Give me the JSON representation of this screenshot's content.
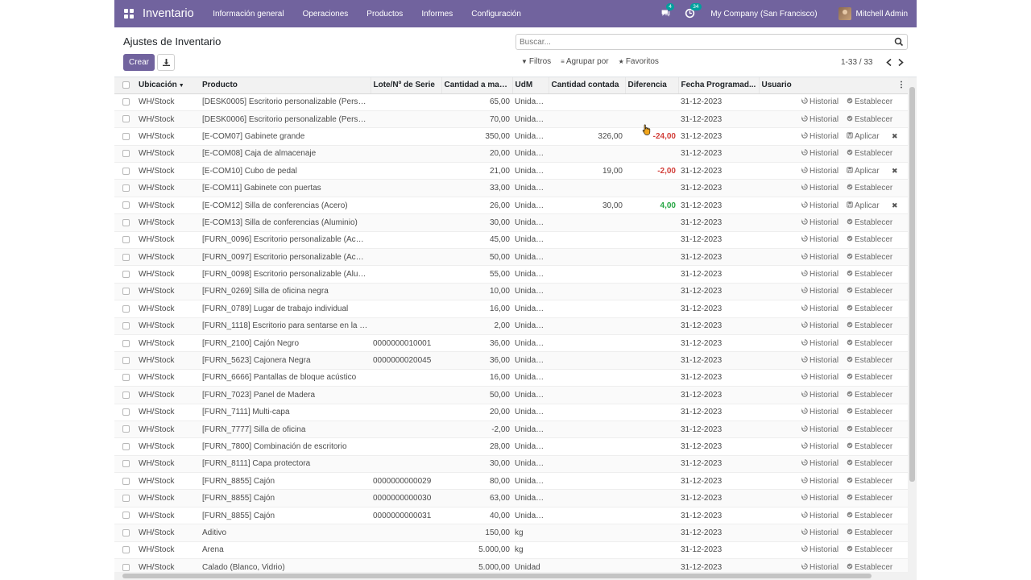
{
  "topbar": {
    "brand": "Inventario",
    "menu": [
      "Información general",
      "Operaciones",
      "Productos",
      "Informes",
      "Configuración"
    ],
    "messages_count": "4",
    "activities_count": "34",
    "company": "My Company (San Francisco)",
    "user": "Mitchell Admin"
  },
  "control_panel": {
    "title": "Ajustes de Inventario",
    "create_label": "Crear",
    "search_placeholder": "Buscar...",
    "filters_label": "Filtros",
    "group_by_label": "Agrupar por",
    "favorites_label": "Favoritos",
    "pager": "1-33 / 33"
  },
  "table": {
    "columns": [
      "Ubicación",
      "Producto",
      "Lote/Nº de Serie",
      "Cantidad a mano...",
      "UdM",
      "Cantidad contada",
      "Diferencia",
      "Fecha Programad...",
      "Usuario"
    ],
    "history_label": "Historial",
    "set_label": "Establecer",
    "apply_label": "Aplicar",
    "rows": [
      {
        "loc": "WH/Stock",
        "product": "[DESK0005] Escritorio personalizable (Person...",
        "lot": "",
        "qty": "65,00",
        "uom": "Unidad...",
        "counted": "",
        "diff": "",
        "diff_sign": "",
        "date": "31-12-2023",
        "user": "",
        "apply": false
      },
      {
        "loc": "WH/Stock",
        "product": "[DESK0006] Escritorio personalizable (Person...",
        "lot": "",
        "qty": "70,00",
        "uom": "Unidad...",
        "counted": "",
        "diff": "",
        "diff_sign": "",
        "date": "31-12-2023",
        "user": "",
        "apply": false
      },
      {
        "loc": "WH/Stock",
        "product": "[E-COM07] Gabinete grande",
        "lot": "",
        "qty": "350,00",
        "uom": "Unidad...",
        "counted": "326,00",
        "diff": "-24,00",
        "diff_sign": "neg",
        "date": "31-12-2023",
        "user": "",
        "apply": true
      },
      {
        "loc": "WH/Stock",
        "product": "[E-COM08] Caja de almacenaje",
        "lot": "",
        "qty": "20,00",
        "uom": "Unidad...",
        "counted": "",
        "diff": "",
        "diff_sign": "",
        "date": "31-12-2023",
        "user": "",
        "apply": false
      },
      {
        "loc": "WH/Stock",
        "product": "[E-COM10] Cubo de pedal",
        "lot": "",
        "qty": "21,00",
        "uom": "Unidad...",
        "counted": "19,00",
        "diff": "-2,00",
        "diff_sign": "neg",
        "date": "31-12-2023",
        "user": "",
        "apply": true
      },
      {
        "loc": "WH/Stock",
        "product": "[E-COM11] Gabinete con puertas",
        "lot": "",
        "qty": "33,00",
        "uom": "Unidad...",
        "counted": "",
        "diff": "",
        "diff_sign": "",
        "date": "31-12-2023",
        "user": "",
        "apply": false
      },
      {
        "loc": "WH/Stock",
        "product": "[E-COM12] Silla de conferencias (Acero)",
        "lot": "",
        "qty": "26,00",
        "uom": "Unidad...",
        "counted": "30,00",
        "diff": "4,00",
        "diff_sign": "pos",
        "date": "31-12-2023",
        "user": "",
        "apply": true
      },
      {
        "loc": "WH/Stock",
        "product": "[E-COM13] Silla de conferencias (Aluminio)",
        "lot": "",
        "qty": "30,00",
        "uom": "Unidad...",
        "counted": "",
        "diff": "",
        "diff_sign": "",
        "date": "31-12-2023",
        "user": "",
        "apply": false
      },
      {
        "loc": "WH/Stock",
        "product": "[FURN_0096] Escritorio personalizable (Acero,...",
        "lot": "",
        "qty": "45,00",
        "uom": "Unidad...",
        "counted": "",
        "diff": "",
        "diff_sign": "",
        "date": "31-12-2023",
        "user": "",
        "apply": false
      },
      {
        "loc": "WH/Stock",
        "product": "[FURN_0097] Escritorio personalizable (Acero,...",
        "lot": "",
        "qty": "50,00",
        "uom": "Unidad...",
        "counted": "",
        "diff": "",
        "diff_sign": "",
        "date": "31-12-2023",
        "user": "",
        "apply": false
      },
      {
        "loc": "WH/Stock",
        "product": "[FURN_0098] Escritorio personalizable (Alumin...",
        "lot": "",
        "qty": "55,00",
        "uom": "Unidad...",
        "counted": "",
        "diff": "",
        "diff_sign": "",
        "date": "31-12-2023",
        "user": "",
        "apply": false
      },
      {
        "loc": "WH/Stock",
        "product": "[FURN_0269] Silla de oficina negra",
        "lot": "",
        "qty": "10,00",
        "uom": "Unidad...",
        "counted": "",
        "diff": "",
        "diff_sign": "",
        "date": "31-12-2023",
        "user": "",
        "apply": false
      },
      {
        "loc": "WH/Stock",
        "product": "[FURN_0789] Lugar de trabajo individual",
        "lot": "",
        "qty": "16,00",
        "uom": "Unidad...",
        "counted": "",
        "diff": "",
        "diff_sign": "",
        "date": "31-12-2023",
        "user": "",
        "apply": false
      },
      {
        "loc": "WH/Stock",
        "product": "[FURN_1118] Escritorio para sentarse en la izq...",
        "lot": "",
        "qty": "2,00",
        "uom": "Unidad...",
        "counted": "",
        "diff": "",
        "diff_sign": "",
        "date": "31-12-2023",
        "user": "",
        "apply": false
      },
      {
        "loc": "WH/Stock",
        "product": "[FURN_2100] Cajón Negro",
        "lot": "0000000010001",
        "qty": "36,00",
        "uom": "Unidad...",
        "counted": "",
        "diff": "",
        "diff_sign": "",
        "date": "31-12-2023",
        "user": "",
        "apply": false
      },
      {
        "loc": "WH/Stock",
        "product": "[FURN_5623] Cajonera Negra",
        "lot": "0000000020045",
        "qty": "36,00",
        "uom": "Unidad...",
        "counted": "",
        "diff": "",
        "diff_sign": "",
        "date": "31-12-2023",
        "user": "",
        "apply": false
      },
      {
        "loc": "WH/Stock",
        "product": "[FURN_6666] Pantallas de bloque acústico",
        "lot": "",
        "qty": "16,00",
        "uom": "Unidad...",
        "counted": "",
        "diff": "",
        "diff_sign": "",
        "date": "31-12-2023",
        "user": "",
        "apply": false
      },
      {
        "loc": "WH/Stock",
        "product": "[FURN_7023] Panel de Madera",
        "lot": "",
        "qty": "50,00",
        "uom": "Unidad...",
        "counted": "",
        "diff": "",
        "diff_sign": "",
        "date": "31-12-2023",
        "user": "",
        "apply": false
      },
      {
        "loc": "WH/Stock",
        "product": "[FURN_7111] Multi-capa",
        "lot": "",
        "qty": "20,00",
        "uom": "Unidad...",
        "counted": "",
        "diff": "",
        "diff_sign": "",
        "date": "31-12-2023",
        "user": "",
        "apply": false
      },
      {
        "loc": "WH/Stock",
        "product": "[FURN_7777] Silla de oficina",
        "lot": "",
        "qty": "-2,00",
        "uom": "Unidad...",
        "counted": "",
        "diff": "",
        "diff_sign": "",
        "date": "31-12-2023",
        "user": "",
        "apply": false
      },
      {
        "loc": "WH/Stock",
        "product": "[FURN_7800] Combinación de escritorio",
        "lot": "",
        "qty": "28,00",
        "uom": "Unidad...",
        "counted": "",
        "diff": "",
        "diff_sign": "",
        "date": "31-12-2023",
        "user": "",
        "apply": false
      },
      {
        "loc": "WH/Stock",
        "product": "[FURN_8111] Capa protectora",
        "lot": "",
        "qty": "30,00",
        "uom": "Unidad...",
        "counted": "",
        "diff": "",
        "diff_sign": "",
        "date": "31-12-2023",
        "user": "",
        "apply": false
      },
      {
        "loc": "WH/Stock",
        "product": "[FURN_8855] Cajón",
        "lot": "0000000000029",
        "qty": "80,00",
        "uom": "Unidad...",
        "counted": "",
        "diff": "",
        "diff_sign": "",
        "date": "31-12-2023",
        "user": "",
        "apply": false
      },
      {
        "loc": "WH/Stock",
        "product": "[FURN_8855] Cajón",
        "lot": "0000000000030",
        "qty": "63,00",
        "uom": "Unidad...",
        "counted": "",
        "diff": "",
        "diff_sign": "",
        "date": "31-12-2023",
        "user": "",
        "apply": false
      },
      {
        "loc": "WH/Stock",
        "product": "[FURN_8855] Cajón",
        "lot": "0000000000031",
        "qty": "40,00",
        "uom": "Unidad...",
        "counted": "",
        "diff": "",
        "diff_sign": "",
        "date": "31-12-2023",
        "user": "",
        "apply": false
      },
      {
        "loc": "WH/Stock",
        "product": "Aditivo",
        "lot": "",
        "qty": "150,00",
        "uom": "kg",
        "counted": "",
        "diff": "",
        "diff_sign": "",
        "date": "31-12-2023",
        "user": "",
        "apply": false
      },
      {
        "loc": "WH/Stock",
        "product": "Arena",
        "lot": "",
        "qty": "5.000,00",
        "uom": "kg",
        "counted": "",
        "diff": "",
        "diff_sign": "",
        "date": "31-12-2023",
        "user": "",
        "apply": false
      },
      {
        "loc": "WH/Stock",
        "product": "Calado (Blanco, Vidrio)",
        "lot": "",
        "qty": "5.000,00",
        "uom": "Unidad",
        "counted": "",
        "diff": "",
        "diff_sign": "",
        "date": "31-12-2023",
        "user": "",
        "apply": false
      }
    ]
  },
  "colors": {
    "brand": "#71639e",
    "negative": "#d23f3a",
    "positive": "#28a745",
    "badge": "#00a09d"
  },
  "icons": [
    "apps-grid-icon",
    "chat-icon",
    "clock-icon",
    "download-icon",
    "search-icon",
    "filter-icon",
    "group-icon",
    "star-icon",
    "history-icon",
    "set-icon",
    "apply-icon",
    "discard-icon"
  ]
}
